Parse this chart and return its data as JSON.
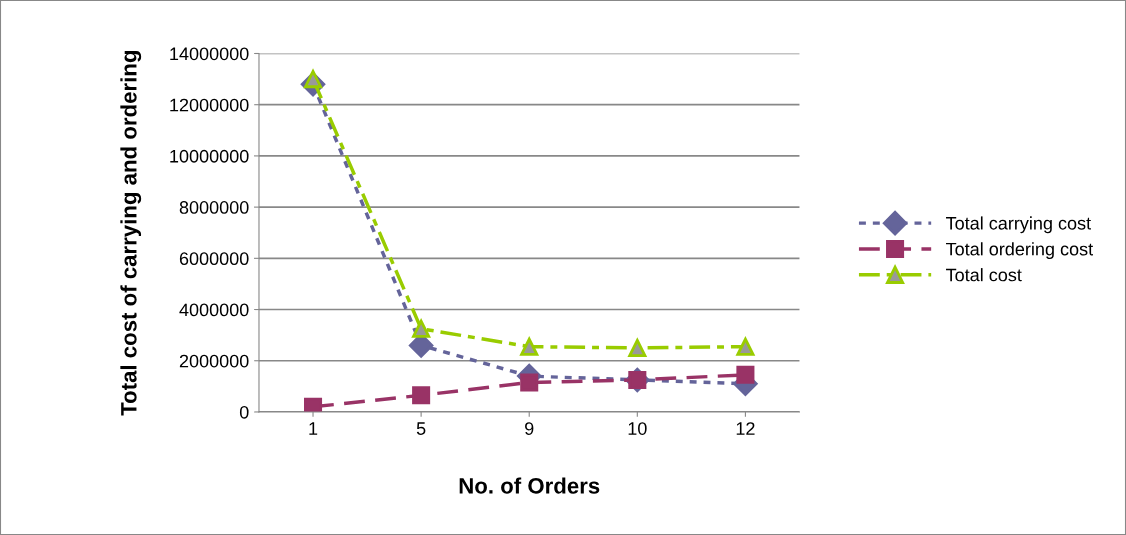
{
  "chart_data": {
    "type": "line",
    "xlabel": "No. of Orders",
    "ylabel": "Total cost of carrying and ordering",
    "categories": [
      "1",
      "5",
      "9",
      "10",
      "12"
    ],
    "series": [
      {
        "name": "Total carrying cost",
        "color": "#64649a",
        "marker": "diamond",
        "line_style": "dotted",
        "values": [
          12800000,
          2600000,
          1400000,
          1250000,
          1100000
        ]
      },
      {
        "name": "Total ordering cost",
        "color": "#993366",
        "marker": "square",
        "line_style": "dashed",
        "values": [
          200000,
          650000,
          1150000,
          1250000,
          1450000
        ]
      },
      {
        "name": "Total cost",
        "color": "#99cc00",
        "marker": "triangle",
        "line_style": "dashdot",
        "values": [
          13000000,
          3250000,
          2550000,
          2500000,
          2550000
        ]
      }
    ],
    "ylim": [
      0,
      14000000
    ],
    "yticks": [
      0,
      2000000,
      4000000,
      6000000,
      8000000,
      10000000,
      12000000,
      14000000
    ],
    "grid": "y",
    "legend": "right"
  }
}
